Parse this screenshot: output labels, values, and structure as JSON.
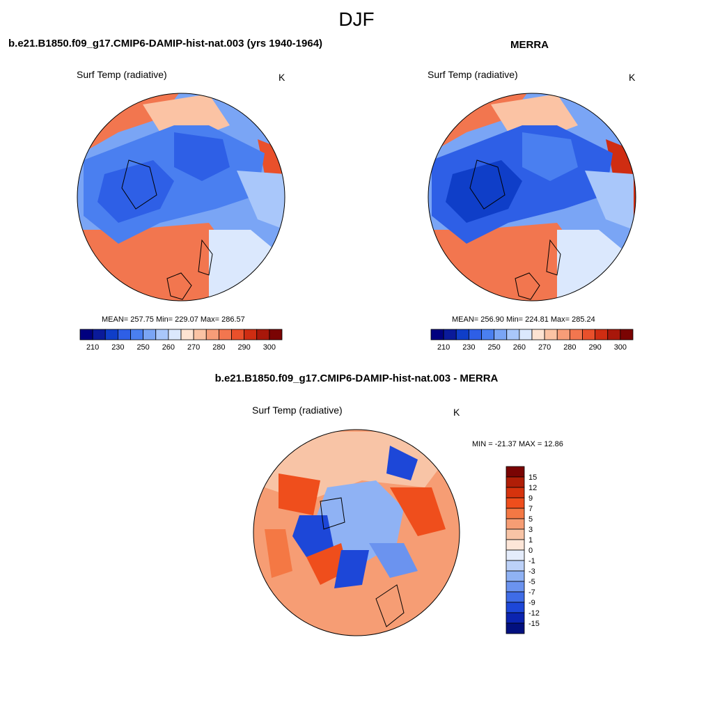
{
  "figure": {
    "title": "DJF"
  },
  "panels": {
    "model": {
      "title": "b.e21.B1850.f09_g17.CMIP6-DAMIP-hist-nat.003 (yrs 1940-1964)",
      "variable": "Surf Temp (radiative)",
      "units": "K",
      "stats": "MEAN= 257.75  Min= 229.07  Max= 286.57"
    },
    "obs": {
      "title": "MERRA",
      "variable": "Surf Temp (radiative)",
      "units": "K",
      "stats": "MEAN= 256.90  Min= 224.81  Max= 285.24"
    },
    "diff": {
      "title": "b.e21.B1850.f09_g17.CMIP6-DAMIP-hist-nat.003 - MERRA",
      "variable": "Surf Temp (radiative)",
      "units": "K",
      "stats": "MIN = -21.37 MAX =  12.86"
    }
  },
  "chart_data": [
    {
      "type": "heatmap",
      "projection": "north polar stereographic",
      "title": "b.e21.B1850.f09_g17.CMIP6-DAMIP-hist-nat.003 (yrs 1940-1964)",
      "variable": "Surf Temp (radiative)",
      "units": "K",
      "mean": 257.75,
      "min": 229.07,
      "max": 286.57,
      "colorbar": {
        "orientation": "horizontal",
        "tick_labels": [
          "210",
          "230",
          "250",
          "260",
          "270",
          "280",
          "290",
          "300"
        ],
        "colors": [
          "#00007f",
          "#0a1a9a",
          "#0f3ec8",
          "#2e5fe6",
          "#4a7ff0",
          "#7aa5f5",
          "#a9c7fa",
          "#dbe8fd",
          "#fde3d2",
          "#fbc3a4",
          "#f79d78",
          "#f2764f",
          "#e9502b",
          "#cf2d12",
          "#a8170a",
          "#7a0403"
        ]
      }
    },
    {
      "type": "heatmap",
      "projection": "north polar stereographic",
      "title": "MERRA",
      "variable": "Surf Temp (radiative)",
      "units": "K",
      "mean": 256.9,
      "min": 224.81,
      "max": 285.24,
      "colorbar": {
        "orientation": "horizontal",
        "tick_labels": [
          "210",
          "230",
          "250",
          "260",
          "270",
          "280",
          "290",
          "300"
        ],
        "colors": [
          "#00007f",
          "#0a1a9a",
          "#0f3ec8",
          "#2e5fe6",
          "#4a7ff0",
          "#7aa5f5",
          "#a9c7fa",
          "#dbe8fd",
          "#fde3d2",
          "#fbc3a4",
          "#f79d78",
          "#f2764f",
          "#e9502b",
          "#cf2d12",
          "#a8170a",
          "#7a0403"
        ]
      }
    },
    {
      "type": "heatmap",
      "projection": "north polar stereographic",
      "title": "b.e21.B1850.f09_g17.CMIP6-DAMIP-hist-nat.003 - MERRA",
      "variable": "Surf Temp (radiative)",
      "units": "K",
      "min": -21.37,
      "max": 12.86,
      "colorbar": {
        "orientation": "vertical",
        "tick_labels": [
          "15",
          "12",
          "9",
          "7",
          "5",
          "3",
          "1",
          "0",
          "-1",
          "-3",
          "-5",
          "-7",
          "-9",
          "-12",
          "-15"
        ],
        "colors": [
          "#7a0403",
          "#b01e07",
          "#d6330d",
          "#ef4e1c",
          "#f47844",
          "#f69d74",
          "#f8c4a6",
          "#fde6d8",
          "#e4ecfb",
          "#bcd1f8",
          "#8fb2f4",
          "#6b93ef",
          "#3f6ce6",
          "#1d47d8",
          "#0b24b0",
          "#02107f"
        ]
      }
    }
  ]
}
